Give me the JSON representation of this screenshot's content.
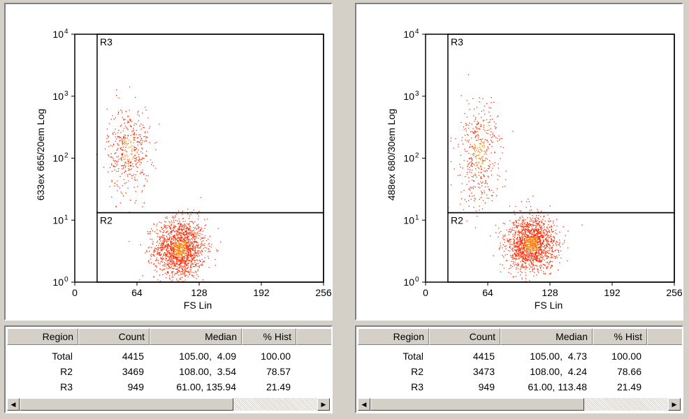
{
  "chart_data": [
    {
      "type": "scatter",
      "xlabel": "FS Lin",
      "ylabel": "633ex 665/20em Log",
      "xlim": [
        0,
        256
      ],
      "ylim": [
        0,
        4
      ],
      "y_scale": "log",
      "x_ticks": [
        "0",
        "64",
        "128",
        "192",
        "256"
      ],
      "y_ticks": [
        "10",
        "10",
        "10",
        "10",
        "10"
      ],
      "y_tick_exponents": [
        "0",
        "1",
        "2",
        "3",
        "4"
      ],
      "regions": [
        {
          "name": "R3",
          "x_range": [
            23,
            256
          ],
          "y_range_log": [
            1.12,
            4
          ]
        },
        {
          "name": "R2",
          "x_range": [
            23,
            256
          ],
          "y_range_log": [
            0,
            1.12
          ]
        }
      ],
      "clusters": [
        {
          "x": 108,
          "y_log": 0.55,
          "sx": 13,
          "sy": 0.24,
          "count": 3469
        },
        {
          "x": 55,
          "y_log": 2.15,
          "sx": 11,
          "sy": 0.35,
          "count": 949
        }
      ],
      "point_color": "#ff2a00",
      "table": {
        "headers": [
          "Region",
          "Count",
          "Median",
          "% Hist"
        ],
        "rows": [
          [
            "Total",
            "4415",
            "105.00,  4.09",
            "100.00"
          ],
          [
            "R2",
            "3469",
            "108.00,  3.54",
            "78.57"
          ],
          [
            "R3",
            "949",
            "61.00, 135.94",
            "21.49"
          ]
        ]
      }
    },
    {
      "type": "scatter",
      "xlabel": "FS Lin",
      "ylabel": "488ex 680/30em Log",
      "xlim": [
        0,
        256
      ],
      "ylim": [
        0,
        4
      ],
      "y_scale": "log",
      "x_ticks": [
        "0",
        "64",
        "128",
        "192",
        "256"
      ],
      "y_ticks": [
        "10",
        "10",
        "10",
        "10",
        "10"
      ],
      "y_tick_exponents": [
        "0",
        "1",
        "2",
        "3",
        "4"
      ],
      "regions": [
        {
          "name": "R3",
          "x_range": [
            23,
            256
          ],
          "y_range_log": [
            1.12,
            4
          ]
        },
        {
          "name": "R2",
          "x_range": [
            23,
            256
          ],
          "y_range_log": [
            0,
            1.12
          ]
        }
      ],
      "clusters": [
        {
          "x": 108,
          "y_log": 0.62,
          "sx": 13,
          "sy": 0.22,
          "count": 3473
        },
        {
          "x": 55,
          "y_log": 2.05,
          "sx": 11,
          "sy": 0.42,
          "count": 949
        }
      ],
      "point_color": "#ff2a00",
      "table": {
        "headers": [
          "Region",
          "Count",
          "Median",
          "% Hist"
        ],
        "rows": [
          [
            "Total",
            "4415",
            "105.00,  4.73",
            "100.00"
          ],
          [
            "R2",
            "3473",
            "108.00,  4.24",
            "78.66"
          ],
          [
            "R3",
            "949",
            "61.00, 113.48",
            "21.49"
          ]
        ]
      }
    }
  ]
}
